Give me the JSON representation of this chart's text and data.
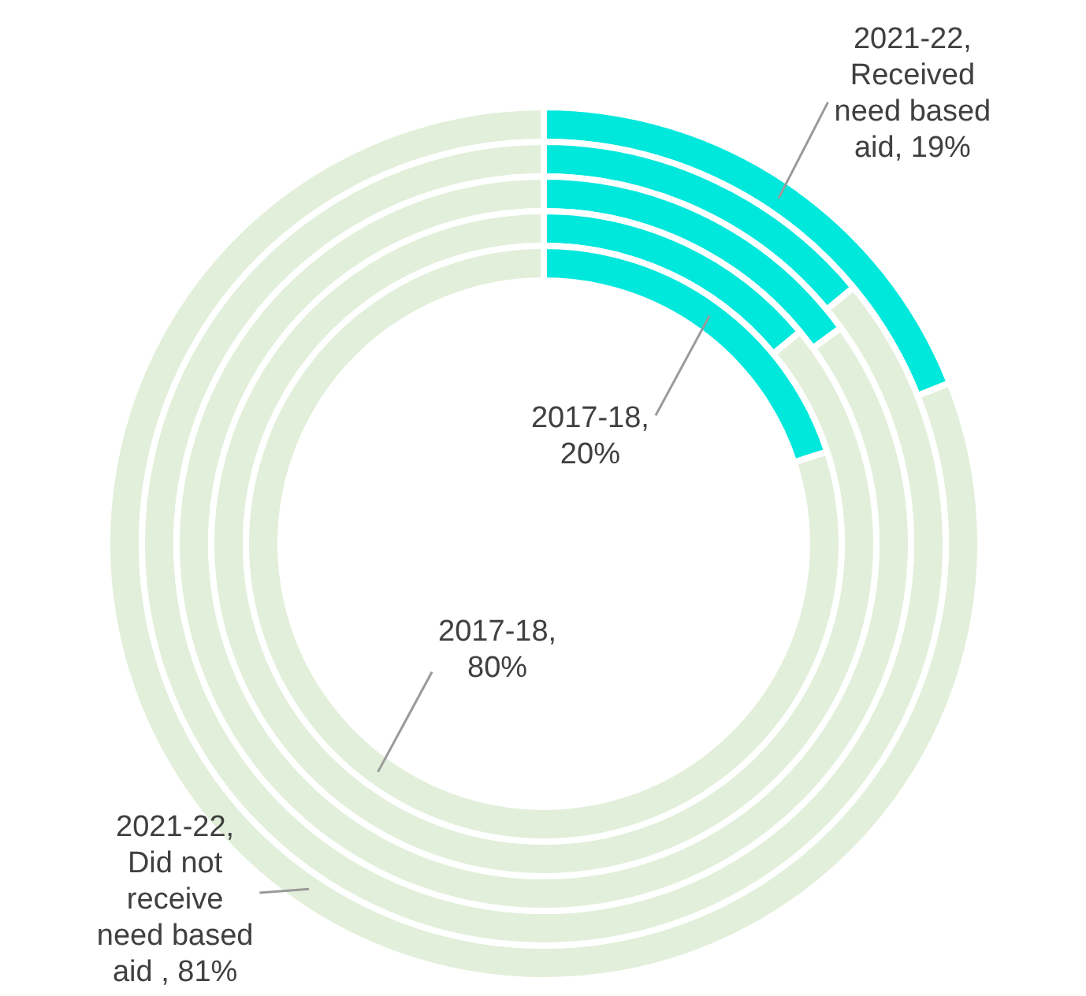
{
  "chart_data": [
    {
      "type": "donut",
      "categories": [
        null,
        null
      ],
      "colors": [
        "#00e8dc",
        "#e2efda"
      ],
      "values": [
        19,
        81
      ],
      "value_labels": [
        "2021-22, Received need based aid, 19%",
        "2021-22, Did not receive need based aid , 81%"
      ],
      "legend": false
    },
    {
      "type": "donut",
      "categories": [
        null,
        null
      ],
      "colors": [
        "#00e8dc",
        "#e2efda"
      ],
      "values": [
        14,
        86
      ],
      "legend": false
    },
    {
      "type": "donut",
      "categories": [
        null,
        null
      ],
      "colors": [
        "#00e8dc",
        "#e2efda"
      ],
      "values": [
        15,
        85
      ],
      "legend": false
    },
    {
      "type": "donut",
      "categories": [
        null,
        null
      ],
      "colors": [
        "#00e8dc",
        "#e2efda"
      ],
      "values": [
        14,
        86
      ],
      "legend": false
    },
    {
      "type": "donut",
      "categories": [
        null,
        null
      ],
      "colors": [
        "#00e8dc",
        "#e2efda"
      ],
      "values": [
        20,
        80
      ],
      "value_labels": [
        "2017-18, 20%",
        "2017-18, 80%"
      ],
      "legend": false
    }
  ]
}
